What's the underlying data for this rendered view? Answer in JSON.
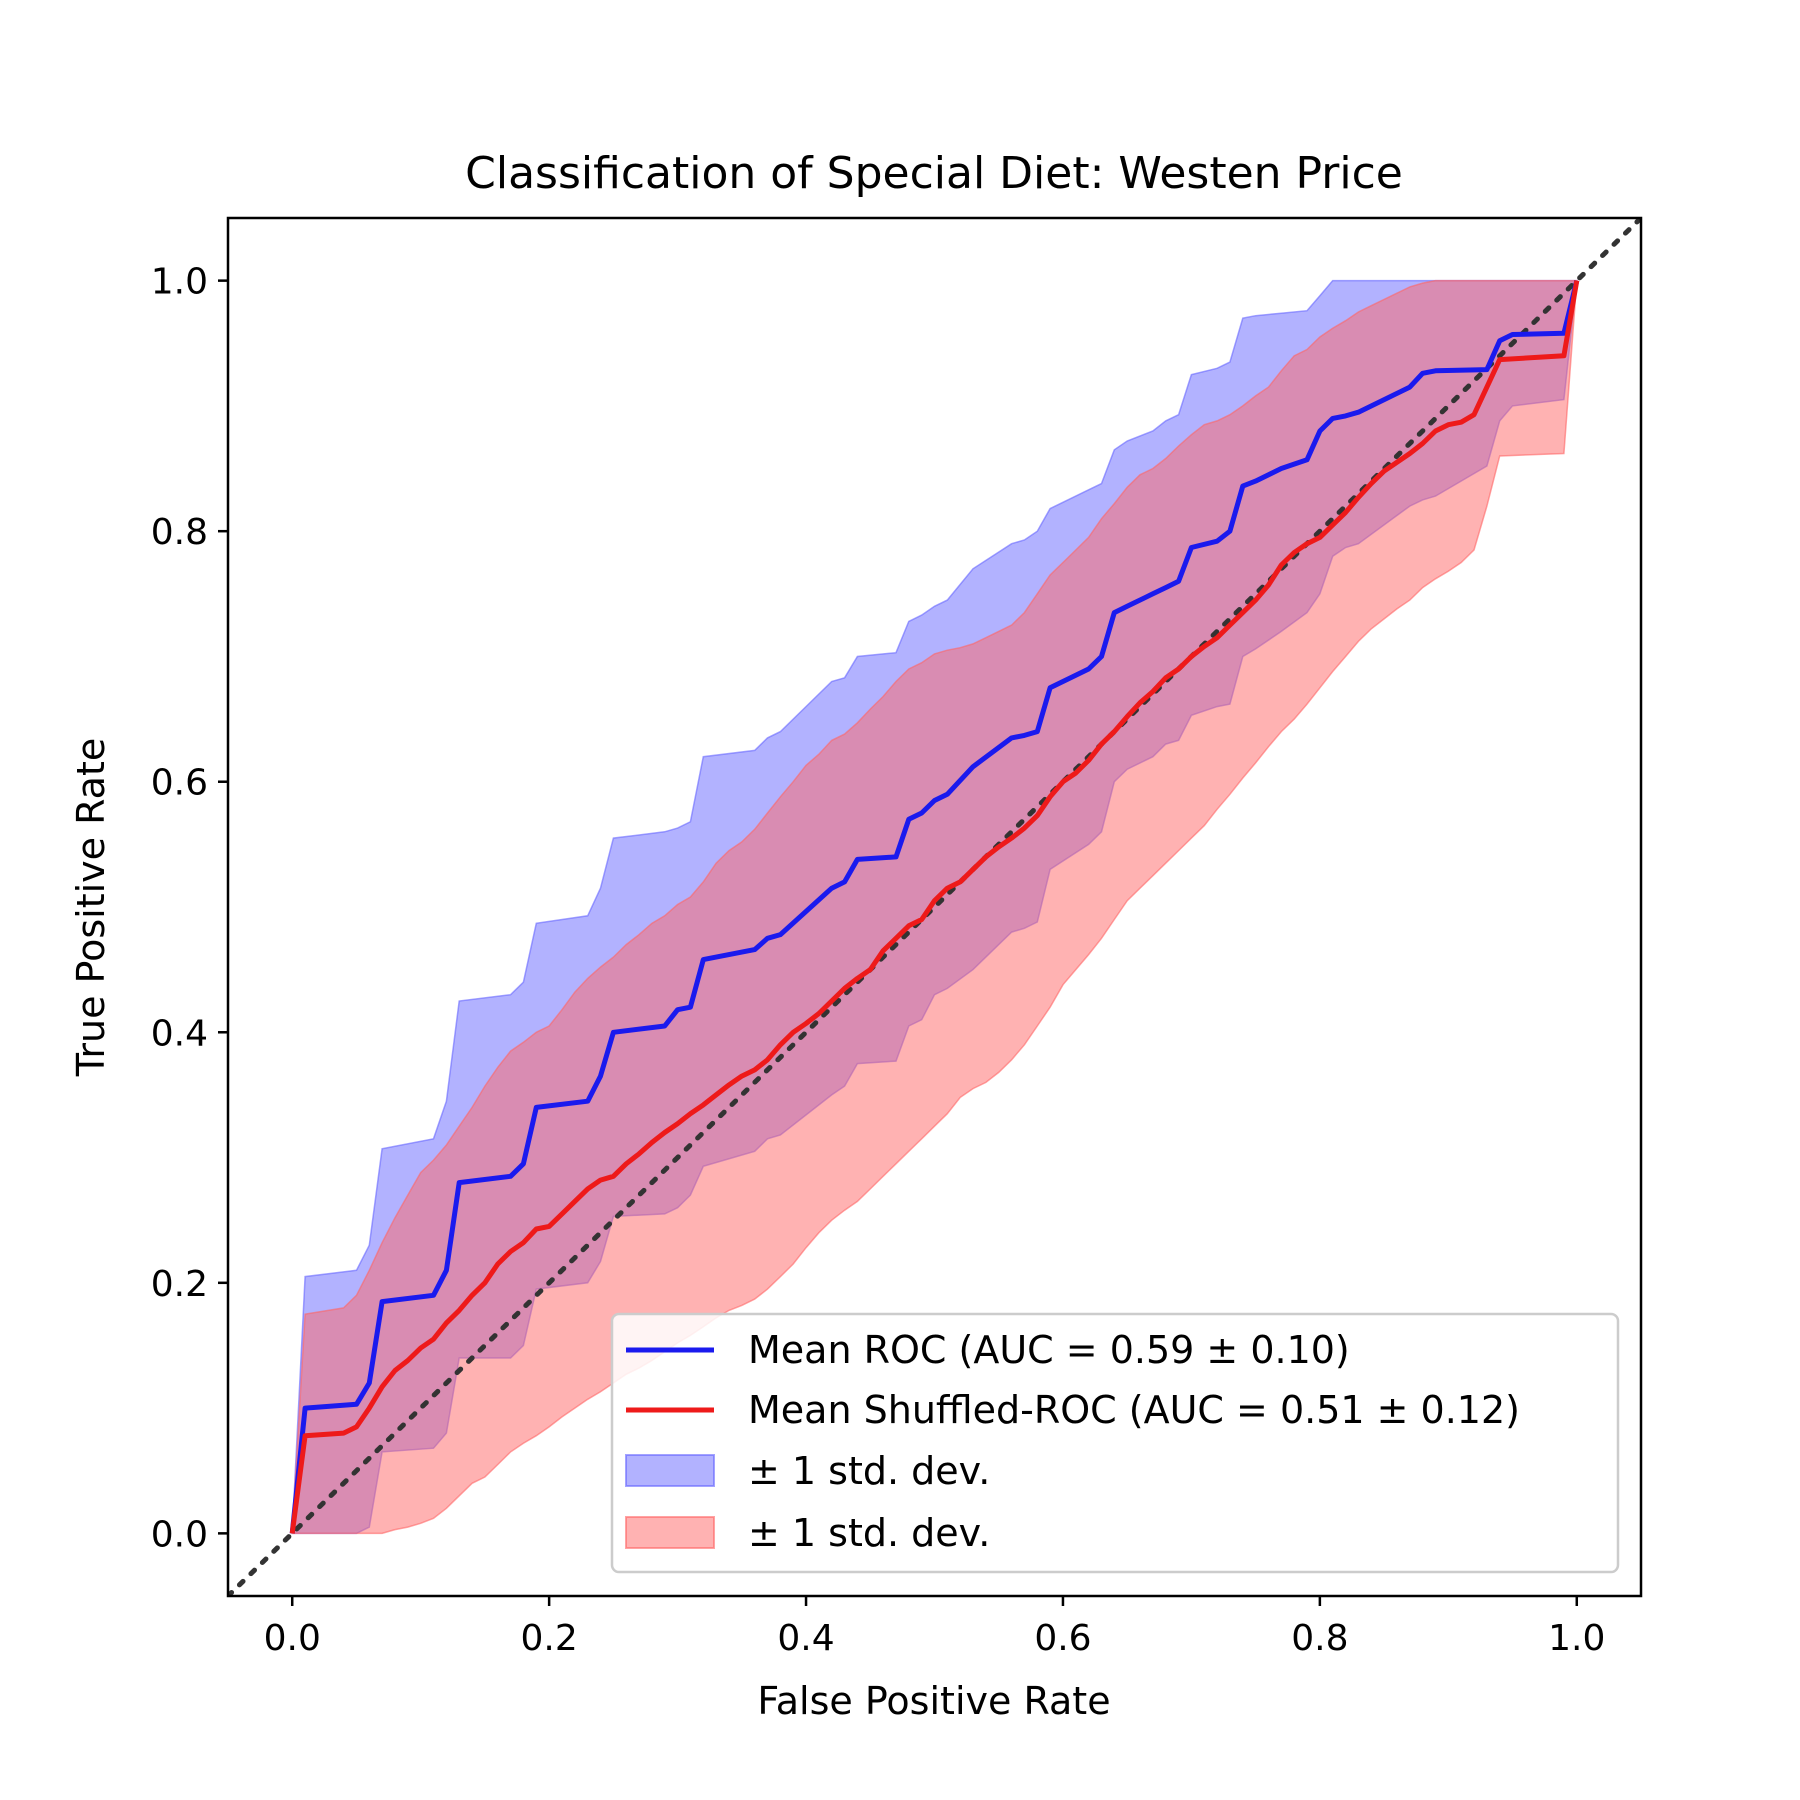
{
  "chart_data": {
    "type": "line",
    "title": "Classification of Special Diet: Westen Price",
    "xlabel": "False Positive Rate",
    "ylabel": "True Positive Rate",
    "xlim": [
      -0.05,
      1.05
    ],
    "ylim": [
      -0.05,
      1.05
    ],
    "xticks": [
      "0.0",
      "0.2",
      "0.4",
      "0.6",
      "0.8",
      "1.0"
    ],
    "yticks": [
      "0.0",
      "0.2",
      "0.4",
      "0.6",
      "0.8",
      "1.0"
    ],
    "legend_position": "lower-right",
    "grid": false,
    "chance_line": {
      "x": [
        -0.05,
        1.05
      ],
      "y": [
        -0.05,
        1.05
      ],
      "color": "#333333",
      "style": "dotted"
    },
    "series": [
      {
        "name": "Mean ROC (AUC = 0.59 ± 0.10)",
        "color": "#1a1aee",
        "x": [
          0,
          0.01,
          0.05,
          0.06,
          0.07,
          0.11,
          0.12,
          0.13,
          0.17,
          0.18,
          0.19,
          0.23,
          0.24,
          0.25,
          0.29,
          0.3,
          0.31,
          0.32,
          0.36,
          0.37,
          0.38,
          0.42,
          0.43,
          0.44,
          0.47,
          0.48,
          0.49,
          0.5,
          0.51,
          0.53,
          0.56,
          0.57,
          0.58,
          0.59,
          0.62,
          0.63,
          0.64,
          0.65,
          0.67,
          0.68,
          0.69,
          0.7,
          0.72,
          0.73,
          0.74,
          0.75,
          0.77,
          0.79,
          0.8,
          0.81,
          0.82,
          0.83,
          0.87,
          0.88,
          0.89,
          0.93,
          0.94,
          0.95,
          0.99,
          1.0
        ],
        "y": [
          0,
          0.1,
          0.103,
          0.12,
          0.185,
          0.19,
          0.21,
          0.28,
          0.285,
          0.295,
          0.34,
          0.345,
          0.365,
          0.4,
          0.405,
          0.418,
          0.42,
          0.458,
          0.466,
          0.475,
          0.478,
          0.515,
          0.52,
          0.538,
          0.54,
          0.57,
          0.575,
          0.585,
          0.59,
          0.612,
          0.635,
          0.637,
          0.64,
          0.675,
          0.69,
          0.7,
          0.735,
          0.74,
          0.75,
          0.755,
          0.76,
          0.787,
          0.792,
          0.8,
          0.836,
          0.84,
          0.85,
          0.857,
          0.88,
          0.89,
          0.892,
          0.895,
          0.915,
          0.926,
          0.928,
          0.929,
          0.952,
          0.957,
          0.958,
          1.0
        ]
      },
      {
        "name": "Mean Shuffled-ROC (AUC = 0.51 ± 0.12)",
        "color": "#ee1a1a",
        "x": [
          0,
          0.01,
          0.04,
          0.05,
          0.06,
          0.07,
          0.08,
          0.09,
          0.1,
          0.11,
          0.12,
          0.13,
          0.14,
          0.15,
          0.16,
          0.17,
          0.18,
          0.19,
          0.2,
          0.21,
          0.22,
          0.23,
          0.24,
          0.25,
          0.26,
          0.27,
          0.28,
          0.29,
          0.3,
          0.31,
          0.32,
          0.33,
          0.34,
          0.35,
          0.36,
          0.37,
          0.38,
          0.39,
          0.4,
          0.41,
          0.42,
          0.43,
          0.44,
          0.45,
          0.46,
          0.47,
          0.48,
          0.49,
          0.5,
          0.51,
          0.52,
          0.53,
          0.54,
          0.55,
          0.56,
          0.57,
          0.58,
          0.59,
          0.6,
          0.61,
          0.62,
          0.63,
          0.64,
          0.65,
          0.66,
          0.67,
          0.68,
          0.69,
          0.7,
          0.71,
          0.72,
          0.73,
          0.74,
          0.75,
          0.76,
          0.77,
          0.78,
          0.79,
          0.8,
          0.81,
          0.82,
          0.83,
          0.84,
          0.85,
          0.86,
          0.87,
          0.88,
          0.89,
          0.9,
          0.91,
          0.92,
          0.93,
          0.94,
          0.99,
          1.0
        ],
        "y": [
          0,
          0.078,
          0.08,
          0.085,
          0.1,
          0.117,
          0.13,
          0.138,
          0.148,
          0.155,
          0.168,
          0.178,
          0.19,
          0.2,
          0.215,
          0.225,
          0.232,
          0.243,
          0.245,
          0.255,
          0.265,
          0.275,
          0.282,
          0.285,
          0.295,
          0.303,
          0.312,
          0.32,
          0.327,
          0.335,
          0.342,
          0.35,
          0.358,
          0.365,
          0.37,
          0.378,
          0.39,
          0.4,
          0.407,
          0.415,
          0.425,
          0.435,
          0.443,
          0.45,
          0.465,
          0.475,
          0.485,
          0.49,
          0.505,
          0.515,
          0.52,
          0.53,
          0.54,
          0.548,
          0.555,
          0.563,
          0.573,
          0.588,
          0.6,
          0.607,
          0.617,
          0.63,
          0.64,
          0.652,
          0.663,
          0.672,
          0.683,
          0.69,
          0.7,
          0.708,
          0.715,
          0.725,
          0.735,
          0.745,
          0.757,
          0.773,
          0.783,
          0.79,
          0.795,
          0.805,
          0.815,
          0.827,
          0.838,
          0.848,
          0.855,
          0.862,
          0.87,
          0.88,
          0.885,
          0.887,
          0.893,
          0.915,
          0.937,
          0.94,
          1.0
        ]
      }
    ],
    "bands": [
      {
        "name": "± 1 std. dev.",
        "color": "#6666ff",
        "opacity": 0.5,
        "x": [
          0,
          0.01,
          0.05,
          0.06,
          0.07,
          0.11,
          0.12,
          0.13,
          0.17,
          0.18,
          0.19,
          0.23,
          0.24,
          0.25,
          0.29,
          0.3,
          0.31,
          0.32,
          0.36,
          0.37,
          0.38,
          0.42,
          0.43,
          0.44,
          0.47,
          0.48,
          0.49,
          0.5,
          0.51,
          0.53,
          0.56,
          0.57,
          0.58,
          0.59,
          0.62,
          0.63,
          0.64,
          0.65,
          0.67,
          0.68,
          0.69,
          0.7,
          0.72,
          0.73,
          0.74,
          0.75,
          0.77,
          0.79,
          0.8,
          0.81,
          0.82,
          0.83,
          0.87,
          0.88,
          0.89,
          0.93,
          0.94,
          0.95,
          0.99,
          1.0
        ],
        "upper": [
          0,
          0.205,
          0.21,
          0.23,
          0.307,
          0.315,
          0.345,
          0.425,
          0.43,
          0.44,
          0.487,
          0.493,
          0.515,
          0.555,
          0.56,
          0.563,
          0.568,
          0.62,
          0.625,
          0.635,
          0.64,
          0.68,
          0.683,
          0.7,
          0.703,
          0.728,
          0.733,
          0.74,
          0.745,
          0.77,
          0.79,
          0.793,
          0.8,
          0.818,
          0.833,
          0.838,
          0.865,
          0.872,
          0.88,
          0.888,
          0.893,
          0.925,
          0.93,
          0.935,
          0.97,
          0.972,
          0.974,
          0.976,
          0.988,
          1.0,
          1.0,
          1.0,
          1.0,
          1.0,
          1.0,
          1.0,
          1.0,
          1.0,
          1.0,
          1.0
        ],
        "lower": [
          0,
          0,
          0,
          0.005,
          0.065,
          0.068,
          0.08,
          0.14,
          0.14,
          0.15,
          0.195,
          0.2,
          0.217,
          0.253,
          0.255,
          0.26,
          0.27,
          0.293,
          0.305,
          0.315,
          0.318,
          0.35,
          0.357,
          0.375,
          0.377,
          0.405,
          0.41,
          0.43,
          0.435,
          0.45,
          0.48,
          0.483,
          0.488,
          0.53,
          0.55,
          0.56,
          0.6,
          0.61,
          0.62,
          0.63,
          0.633,
          0.653,
          0.66,
          0.662,
          0.7,
          0.706,
          0.72,
          0.735,
          0.75,
          0.78,
          0.787,
          0.79,
          0.82,
          0.825,
          0.828,
          0.852,
          0.888,
          0.9,
          0.905,
          1.0
        ]
      },
      {
        "name": "± 1 std. dev.",
        "color": "#ff6666",
        "opacity": 0.5,
        "x": [
          0,
          0.01,
          0.04,
          0.05,
          0.06,
          0.07,
          0.08,
          0.09,
          0.1,
          0.11,
          0.12,
          0.13,
          0.14,
          0.15,
          0.16,
          0.17,
          0.18,
          0.19,
          0.2,
          0.21,
          0.22,
          0.23,
          0.24,
          0.25,
          0.26,
          0.27,
          0.28,
          0.29,
          0.3,
          0.31,
          0.32,
          0.33,
          0.34,
          0.35,
          0.36,
          0.37,
          0.38,
          0.39,
          0.4,
          0.41,
          0.42,
          0.43,
          0.44,
          0.45,
          0.46,
          0.47,
          0.48,
          0.49,
          0.5,
          0.51,
          0.52,
          0.53,
          0.54,
          0.55,
          0.56,
          0.57,
          0.58,
          0.59,
          0.6,
          0.61,
          0.62,
          0.63,
          0.64,
          0.65,
          0.66,
          0.67,
          0.68,
          0.69,
          0.7,
          0.71,
          0.72,
          0.73,
          0.74,
          0.75,
          0.76,
          0.77,
          0.78,
          0.79,
          0.8,
          0.81,
          0.82,
          0.83,
          0.84,
          0.85,
          0.86,
          0.87,
          0.88,
          0.89,
          0.9,
          0.91,
          0.92,
          0.93,
          0.94,
          0.99,
          1.0
        ],
        "upper": [
          0,
          0.175,
          0.18,
          0.19,
          0.21,
          0.232,
          0.252,
          0.27,
          0.288,
          0.298,
          0.31,
          0.325,
          0.34,
          0.357,
          0.372,
          0.385,
          0.392,
          0.4,
          0.405,
          0.418,
          0.432,
          0.443,
          0.452,
          0.46,
          0.47,
          0.478,
          0.487,
          0.493,
          0.502,
          0.508,
          0.52,
          0.535,
          0.545,
          0.552,
          0.562,
          0.575,
          0.588,
          0.6,
          0.613,
          0.622,
          0.633,
          0.638,
          0.647,
          0.658,
          0.668,
          0.68,
          0.69,
          0.695,
          0.702,
          0.705,
          0.707,
          0.71,
          0.715,
          0.72,
          0.725,
          0.735,
          0.75,
          0.765,
          0.775,
          0.785,
          0.795,
          0.81,
          0.822,
          0.835,
          0.845,
          0.85,
          0.858,
          0.868,
          0.877,
          0.885,
          0.888,
          0.893,
          0.9,
          0.908,
          0.915,
          0.928,
          0.94,
          0.945,
          0.955,
          0.962,
          0.968,
          0.975,
          0.98,
          0.985,
          0.99,
          0.995,
          0.998,
          1.0,
          1.0,
          1.0,
          1.0,
          1.0,
          1.0,
          1.0,
          1.0
        ],
        "lower": [
          0,
          0,
          0,
          0,
          0,
          0,
          0.003,
          0.005,
          0.008,
          0.012,
          0.02,
          0.03,
          0.04,
          0.045,
          0.055,
          0.065,
          0.072,
          0.078,
          0.085,
          0.093,
          0.1,
          0.107,
          0.113,
          0.12,
          0.127,
          0.132,
          0.138,
          0.145,
          0.152,
          0.158,
          0.165,
          0.172,
          0.178,
          0.182,
          0.187,
          0.195,
          0.205,
          0.215,
          0.228,
          0.24,
          0.25,
          0.258,
          0.265,
          0.275,
          0.285,
          0.295,
          0.305,
          0.315,
          0.325,
          0.335,
          0.348,
          0.355,
          0.36,
          0.368,
          0.378,
          0.39,
          0.405,
          0.42,
          0.438,
          0.45,
          0.462,
          0.475,
          0.49,
          0.505,
          0.515,
          0.525,
          0.535,
          0.545,
          0.555,
          0.565,
          0.578,
          0.59,
          0.603,
          0.615,
          0.628,
          0.64,
          0.65,
          0.662,
          0.675,
          0.688,
          0.7,
          0.712,
          0.722,
          0.73,
          0.738,
          0.745,
          0.755,
          0.762,
          0.768,
          0.775,
          0.785,
          0.82,
          0.86,
          0.862,
          1.0
        ]
      }
    ]
  }
}
